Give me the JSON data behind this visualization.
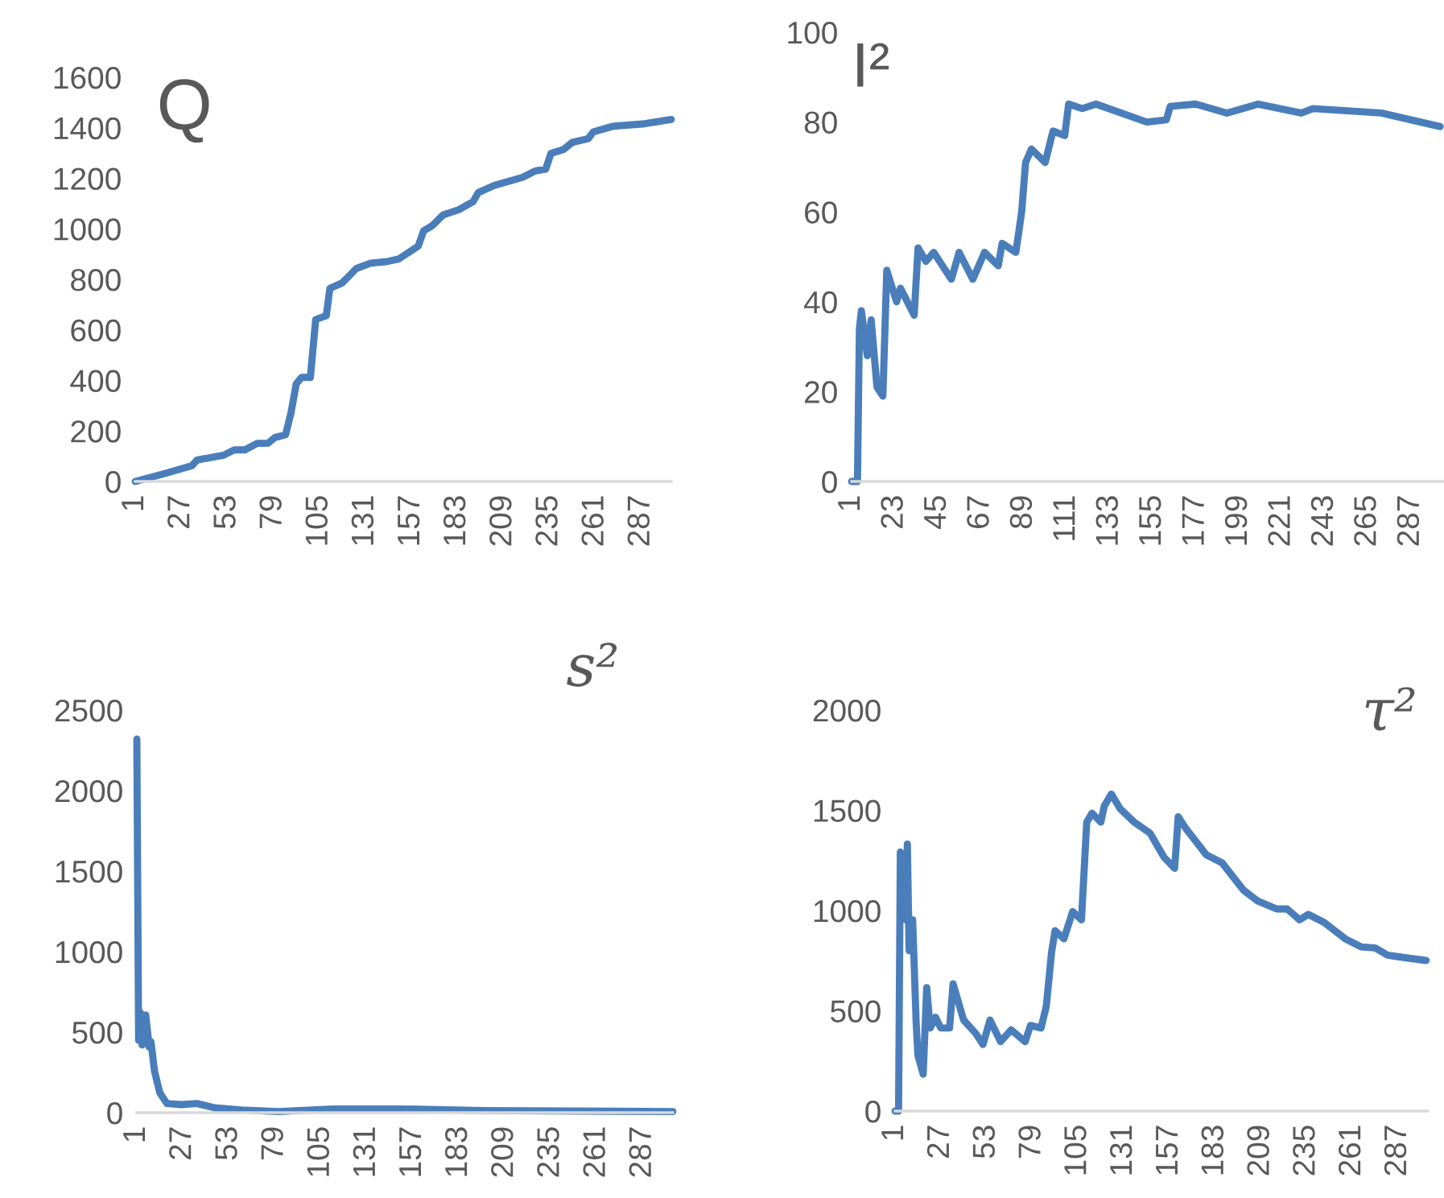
{
  "chart_data": [
    {
      "type": "line",
      "title": "Q",
      "color": "#4a7ebb",
      "xlim": [
        1,
        304
      ],
      "xticks": [
        1,
        27,
        53,
        79,
        105,
        131,
        157,
        183,
        209,
        235,
        261,
        287
      ],
      "ylim": [
        0,
        1600
      ],
      "yticks": [
        0,
        200,
        400,
        600,
        800,
        1000,
        1200,
        1400,
        1600
      ],
      "x": [
        1,
        18,
        33,
        36,
        51,
        57,
        63,
        70,
        76,
        80,
        86,
        89,
        92,
        95,
        100,
        103,
        109,
        111,
        118,
        126,
        134,
        143,
        150,
        161,
        164,
        169,
        175,
        184,
        192,
        195,
        204,
        220,
        227,
        233,
        236,
        243,
        248,
        257,
        260,
        271,
        289,
        304
      ],
      "values": [
        0,
        32,
        62,
        85,
        104,
        125,
        125,
        151,
        151,
        174,
        185,
        270,
        386,
        412,
        412,
        641,
        656,
        764,
        786,
        843,
        864,
        870,
        881,
        932,
        992,
        1013,
        1055,
        1076,
        1108,
        1144,
        1172,
        1204,
        1229,
        1236,
        1299,
        1314,
        1342,
        1357,
        1384,
        1406,
        1416,
        1433
      ]
    },
    {
      "type": "line",
      "title": "I²",
      "color": "#4a7ebb",
      "xlim": [
        1,
        304
      ],
      "xticks": [
        1,
        23,
        45,
        67,
        89,
        111,
        133,
        155,
        177,
        199,
        221,
        243,
        265,
        287
      ],
      "ylim": [
        0,
        100
      ],
      "yticks": [
        0,
        20,
        40,
        60,
        80,
        100
      ],
      "x": [
        1,
        4,
        5,
        6,
        9,
        11,
        14,
        17,
        19,
        24,
        26,
        33,
        35,
        39,
        43,
        52,
        56,
        63,
        69,
        76,
        78,
        85,
        88,
        90,
        93,
        100,
        104,
        110,
        112,
        119,
        126,
        152,
        162,
        164,
        177,
        193,
        209,
        231,
        237,
        272,
        302
      ],
      "values": [
        0,
        0,
        34,
        38,
        28,
        36,
        21,
        19,
        47,
        40,
        43,
        37,
        52,
        49,
        51,
        45,
        51,
        45,
        51,
        48,
        53,
        51,
        60,
        71,
        74,
        71,
        78,
        77,
        84,
        83,
        84,
        80,
        80.5,
        83.5,
        84,
        82,
        84,
        82,
        83,
        82,
        79
      ]
    },
    {
      "type": "line",
      "title": "s²",
      "color": "#4a7ebb",
      "xlim": [
        1,
        304
      ],
      "xticks": [
        1,
        27,
        53,
        79,
        105,
        131,
        157,
        183,
        209,
        235,
        261,
        287
      ],
      "ylim": [
        0,
        2500
      ],
      "yticks": [
        0,
        500,
        1000,
        1500,
        2000,
        2500
      ],
      "x": [
        1,
        2,
        3,
        4,
        6,
        8,
        9,
        11,
        14,
        18,
        26,
        35,
        45,
        60,
        81,
        112,
        151,
        197,
        304
      ],
      "values": [
        2320,
        450,
        620,
        420,
        607,
        407,
        440,
        257,
        123,
        57,
        50,
        57,
        30,
        17,
        7,
        23,
        23,
        13,
        7
      ]
    },
    {
      "type": "line",
      "title": "τ²",
      "color": "#4a7ebb",
      "xlim": [
        1,
        304
      ],
      "xticks": [
        1,
        27,
        53,
        79,
        105,
        131,
        157,
        183,
        209,
        235,
        261,
        287
      ],
      "ylim": [
        0,
        2000
      ],
      "yticks": [
        0,
        500,
        1000,
        1500,
        2000
      ],
      "x": [
        1,
        3,
        4,
        5,
        7,
        8,
        9,
        11,
        13,
        14,
        17,
        19,
        21,
        24,
        27,
        32,
        34,
        40,
        47,
        51,
        55,
        61,
        67,
        75,
        78,
        84,
        87,
        90,
        92,
        97,
        102,
        107,
        110,
        113,
        118,
        120,
        124,
        129,
        137,
        146,
        154,
        160,
        162,
        166,
        178,
        187,
        199,
        207,
        218,
        224,
        231,
        236,
        245,
        257,
        266,
        274,
        281,
        291,
        303
      ],
      "values": [
        0,
        0,
        1292,
        1278,
        954,
        1332,
        800,
        954,
        440,
        278,
        184,
        616,
        414,
        468,
        414,
        414,
        635,
        454,
        386,
        332,
        454,
        346,
        405,
        346,
        427,
        414,
        522,
        792,
        900,
        859,
        995,
        954,
        1441,
        1486,
        1441,
        1522,
        1581,
        1508,
        1441,
        1386,
        1265,
        1211,
        1468,
        1414,
        1278,
        1238,
        1103,
        1049,
        1008,
        1008,
        954,
        981,
        941,
        859,
        819,
        814,
        778,
        765,
        751
      ]
    }
  ]
}
